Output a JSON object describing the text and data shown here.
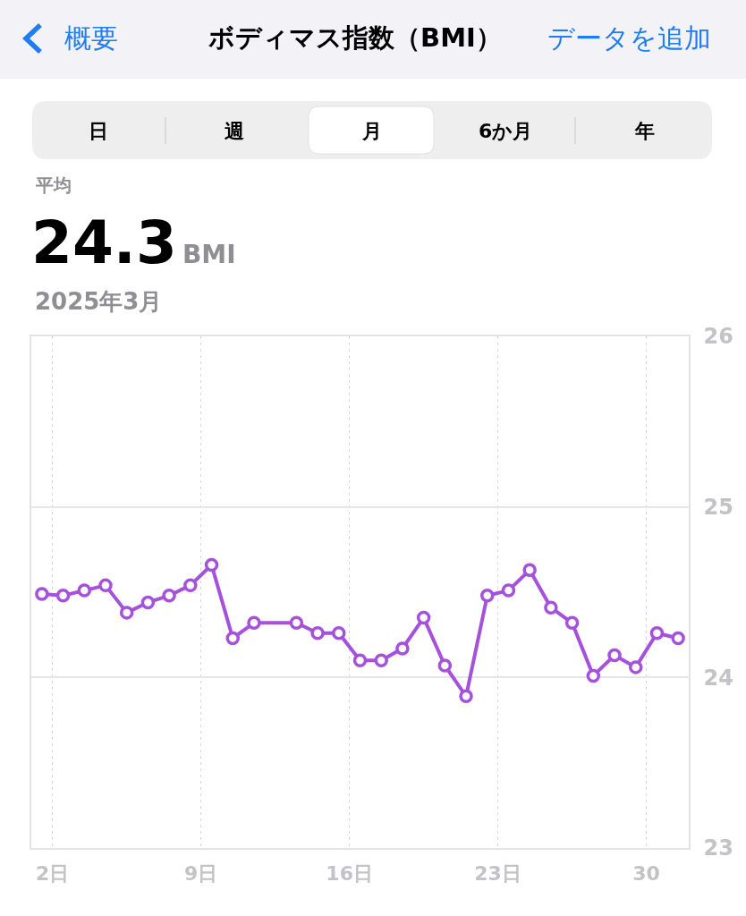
{
  "chart_data": {
    "type": "line",
    "title": "ボディマス指数（BMI）",
    "annotations": [
      "概要",
      "データを追加",
      "日",
      "週",
      "月",
      "6か月",
      "年",
      "平均",
      "24.3",
      "BMI",
      "2025年3月"
    ],
    "series": [
      {
        "color": "#a551db",
        "x": [
          "2025-03-01T12:00",
          "2025-03-02T12:00",
          "2025-03-03T12:00",
          "2025-03-04T12:00",
          "2025-03-05T12:00",
          "2025-03-06T12:00",
          "2025-03-07T12:00",
          "2025-03-08T12:00",
          "2025-03-09T12:00",
          "2025-03-10T12:00",
          "2025-03-11T12:00",
          "2025-03-13T12:00",
          "2025-03-14T12:00",
          "2025-03-15T12:00",
          "2025-03-16T12:00",
          "2025-03-17T12:00",
          "2025-03-18T12:00",
          "2025-03-19T12:00",
          "2025-03-20T12:00",
          "2025-03-21T12:00",
          "2025-03-22T12:00",
          "2025-03-23T12:00",
          "2025-03-24T12:00",
          "2025-03-25T12:00",
          "2025-03-26T12:00",
          "2025-03-27T12:00",
          "2025-03-28T12:00",
          "2025-03-29T12:00",
          "2025-03-30T12:00",
          "2025-03-31T12:00"
        ],
        "values": [
          24.49,
          24.48,
          24.51,
          24.54,
          24.38,
          24.44,
          24.48,
          24.54,
          24.66,
          24.23,
          24.32,
          24.32,
          24.26,
          24.26,
          24.1,
          24.1,
          24.17,
          24.35,
          24.07,
          23.89,
          24.48,
          24.51,
          24.63,
          24.41,
          24.32,
          24.01,
          24.13,
          24.06,
          24.26,
          24.23
        ]
      }
    ],
    "xlim": [
      "2025-03-01",
      "2025-04-01"
    ],
    "xticks": [
      {
        "value": "2025-03-02",
        "label": "2日"
      },
      {
        "value": "2025-03-09",
        "label": "9日"
      },
      {
        "value": "2025-03-16",
        "label": "16日"
      },
      {
        "value": "2025-03-23",
        "label": "23日"
      },
      {
        "value": "2025-03-30",
        "label": "30"
      }
    ],
    "ylim": [
      23,
      26
    ],
    "yticks": [
      23,
      24,
      25,
      26
    ],
    "grid": true,
    "marker": "circle",
    "line_style": "solid"
  }
}
